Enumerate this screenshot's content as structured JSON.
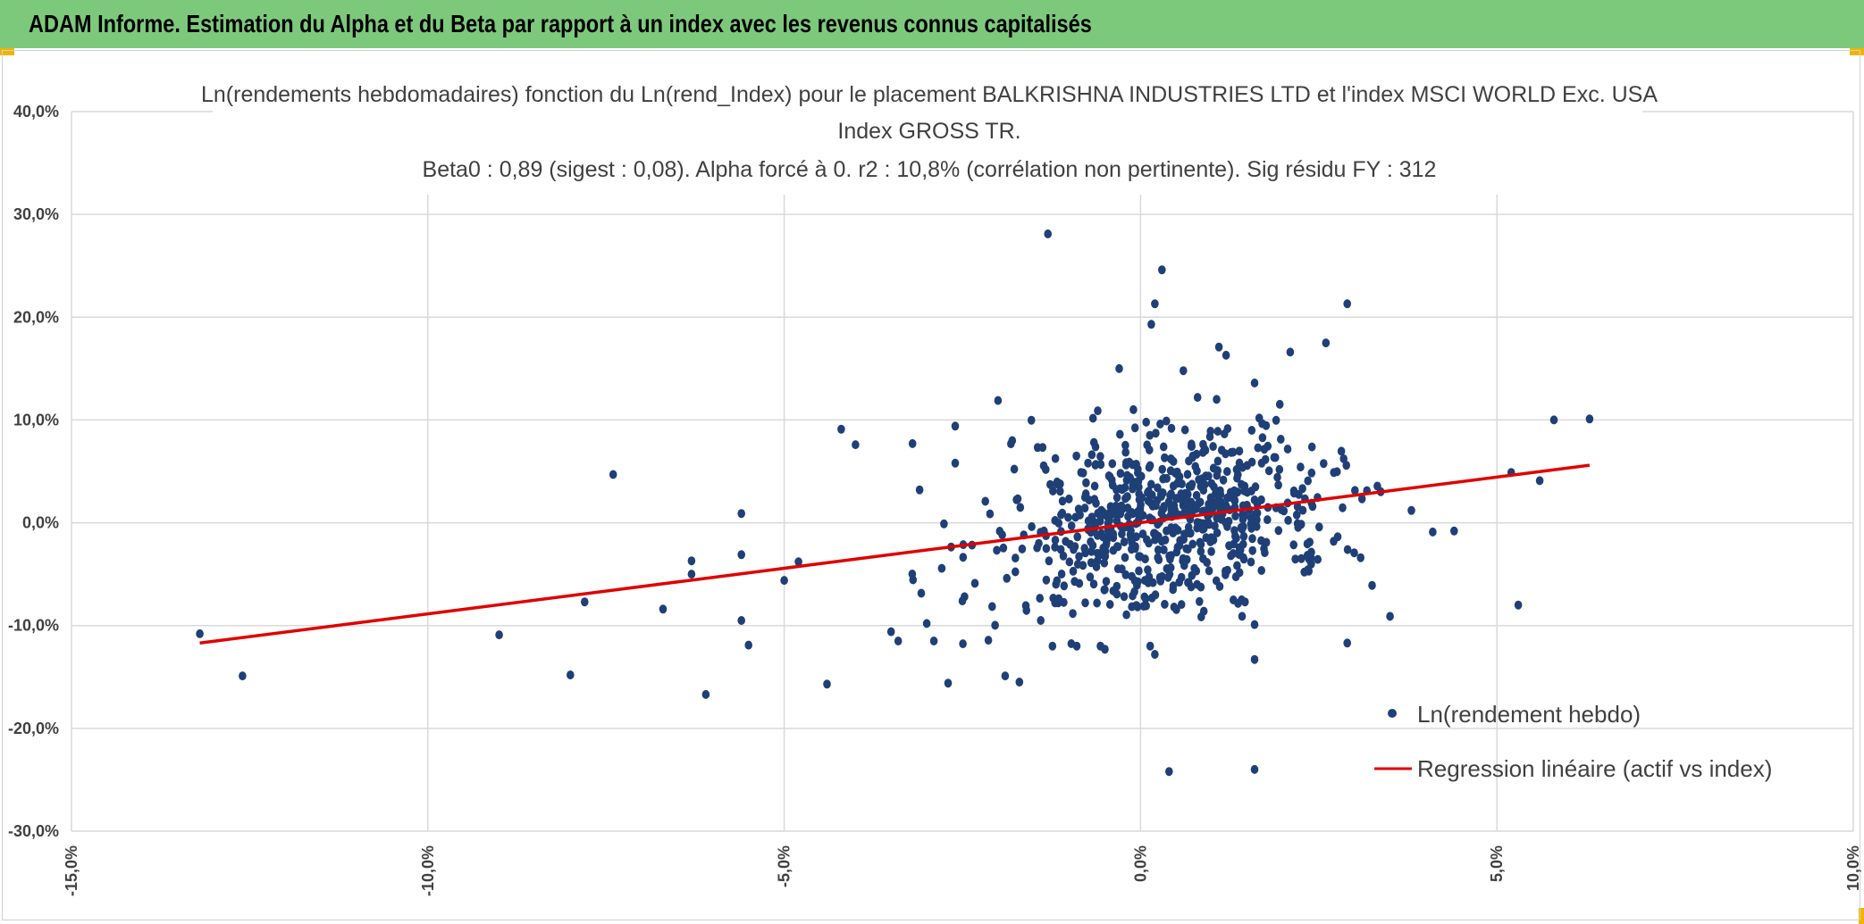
{
  "banner": {
    "title": "ADAM Informe. Estimation du Alpha et du Beta par rapport à un index avec les revenus connus capitalisés"
  },
  "colors": {
    "banner_bg": "#7dc97c",
    "accent_corner": "#f2b400",
    "points": "#1f3f77",
    "regression": "#e00000",
    "grid": "#d9d9d9",
    "text": "#404040"
  },
  "chart_data": {
    "type": "scatter",
    "title_lines": [
      "Ln(rendements hebdomadaires) fonction du Ln(rend_Index) pour le placement BALKRISHNA INDUSTRIES LTD et l'index MSCI WORLD Exc. USA",
      "Index GROSS TR.",
      "Beta0 : 0,89 (sigest : 0,08). Alpha forcé à 0. r2 : 10,8% (corrélation non pertinente). Sig résidu FY : 312"
    ],
    "xlim": [
      -15,
      10
    ],
    "ylim": [
      -30,
      40
    ],
    "x_ticks": [
      -15,
      -10,
      -5,
      0,
      5,
      10
    ],
    "x_tick_labels": [
      "-15,0%",
      "-10,0%",
      "-5,0%",
      "0,0%",
      "5,0%",
      "10,0%"
    ],
    "y_ticks": [
      40,
      30,
      20,
      10,
      0,
      -10,
      -20,
      -30
    ],
    "y_tick_labels": [
      "40,0%",
      "30,0%",
      "20,0%",
      "10,0%",
      "0,0%",
      "-10,0%",
      "-20,0%",
      "-30,0%"
    ],
    "grid": true,
    "legend_position": "bottom-right",
    "series": [
      {
        "name": "Ln(rendement hebdo)",
        "kind": "scatter",
        "cluster": {
          "n": 700,
          "x_mean": 0.3,
          "x_sd": 1.15,
          "beta": 0.89,
          "resid_sd": 4.3,
          "seed": 42
        },
        "points": [
          [
            -13.2,
            -10.8
          ],
          [
            -12.6,
            -14.9
          ],
          [
            -9.0,
            -10.9
          ],
          [
            -8.0,
            -14.8
          ],
          [
            -7.8,
            -7.7
          ],
          [
            -7.4,
            4.7
          ],
          [
            -6.7,
            -8.4
          ],
          [
            -6.3,
            -3.7
          ],
          [
            -6.3,
            -5.0
          ],
          [
            -6.1,
            -16.7
          ],
          [
            -5.6,
            0.9
          ],
          [
            -5.6,
            -3.1
          ],
          [
            -5.6,
            -9.5
          ],
          [
            -5.5,
            -11.9
          ],
          [
            -5.0,
            -5.6
          ],
          [
            -4.8,
            -3.8
          ],
          [
            -4.4,
            -15.7
          ],
          [
            -4.2,
            9.1
          ],
          [
            -4.0,
            7.6
          ],
          [
            -3.5,
            -10.6
          ],
          [
            -3.4,
            -11.5
          ],
          [
            -3.2,
            7.7
          ],
          [
            -3.1,
            3.2
          ],
          [
            -3.0,
            -9.8
          ],
          [
            -2.9,
            -11.5
          ],
          [
            -2.7,
            -15.6
          ],
          [
            -2.6,
            9.4
          ],
          [
            -2.6,
            5.8
          ],
          [
            -2.5,
            -7.6
          ],
          [
            -2.0,
            11.9
          ],
          [
            -1.9,
            -14.9
          ],
          [
            -1.8,
            8.0
          ],
          [
            -1.7,
            -15.5
          ],
          [
            -1.4,
            -9.5
          ],
          [
            -1.3,
            28.1
          ],
          [
            -0.6,
            10.9
          ],
          [
            -0.5,
            -12.3
          ],
          [
            -0.3,
            15.0
          ],
          [
            -0.1,
            11.0
          ],
          [
            0.15,
            19.3
          ],
          [
            0.2,
            21.3
          ],
          [
            0.3,
            24.6
          ],
          [
            0.2,
            -12.8
          ],
          [
            0.4,
            -24.2
          ],
          [
            0.6,
            14.8
          ],
          [
            0.8,
            12.2
          ],
          [
            1.1,
            17.1
          ],
          [
            1.2,
            16.3
          ],
          [
            1.6,
            13.6
          ],
          [
            1.6,
            -9.9
          ],
          [
            1.6,
            -13.3
          ],
          [
            1.6,
            -24.0
          ],
          [
            2.1,
            16.6
          ],
          [
            2.6,
            17.5
          ],
          [
            2.9,
            21.3
          ],
          [
            2.9,
            -11.7
          ],
          [
            3.5,
            -9.1
          ],
          [
            3.8,
            1.2
          ],
          [
            4.1,
            -0.9
          ],
          [
            4.4,
            -0.8
          ],
          [
            5.2,
            4.9
          ],
          [
            5.3,
            -8.0
          ],
          [
            5.6,
            4.1
          ],
          [
            5.8,
            10.0
          ],
          [
            6.3,
            10.1
          ]
        ]
      },
      {
        "name": "Regression linéaire (actif vs index)",
        "kind": "line",
        "x": [
          -13.2,
          6.3
        ],
        "y": [
          -11.7,
          5.6
        ]
      }
    ]
  }
}
